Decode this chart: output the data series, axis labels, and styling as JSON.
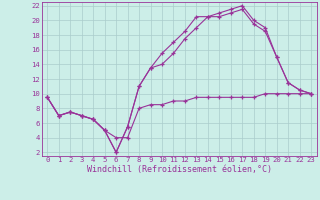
{
  "xlabel": "Windchill (Refroidissement éolien,°C)",
  "bg_color": "#cceee8",
  "grid_color": "#aacccc",
  "line_color": "#993399",
  "xlim": [
    -0.5,
    23.5
  ],
  "ylim": [
    1.5,
    22.5
  ],
  "xticks": [
    0,
    1,
    2,
    3,
    4,
    5,
    6,
    7,
    8,
    9,
    10,
    11,
    12,
    13,
    14,
    15,
    16,
    17,
    18,
    19,
    20,
    21,
    22,
    23
  ],
  "yticks": [
    2,
    4,
    6,
    8,
    10,
    12,
    14,
    16,
    18,
    20,
    22
  ],
  "line1_x": [
    0,
    1,
    2,
    3,
    4,
    5,
    6,
    7,
    8,
    9,
    10,
    11,
    12,
    13,
    14,
    15,
    16,
    17,
    18,
    19,
    20,
    21,
    22,
    23
  ],
  "line1_y": [
    9.5,
    7.0,
    7.5,
    7.0,
    6.5,
    5.0,
    4.0,
    4.0,
    8.0,
    8.5,
    8.5,
    9.0,
    9.0,
    9.5,
    9.5,
    9.5,
    9.5,
    9.5,
    9.5,
    10.0,
    10.0,
    10.0,
    10.0,
    10.0
  ],
  "line2_x": [
    0,
    1,
    2,
    3,
    4,
    5,
    6,
    7,
    8,
    9,
    10,
    11,
    12,
    13,
    14,
    15,
    16,
    17,
    18,
    19,
    20,
    21,
    22,
    23
  ],
  "line2_y": [
    9.5,
    7.0,
    7.5,
    7.0,
    6.5,
    5.0,
    2.0,
    5.5,
    11.0,
    13.5,
    14.0,
    15.5,
    17.5,
    19.0,
    20.5,
    21.0,
    21.5,
    22.0,
    20.0,
    19.0,
    15.0,
    11.5,
    10.5,
    10.0
  ],
  "line3_x": [
    0,
    1,
    2,
    3,
    4,
    5,
    6,
    7,
    8,
    9,
    10,
    11,
    12,
    13,
    14,
    15,
    16,
    17,
    18,
    19,
    20,
    21,
    22,
    23
  ],
  "line3_y": [
    9.5,
    7.0,
    7.5,
    7.0,
    6.5,
    5.0,
    2.0,
    5.5,
    11.0,
    13.5,
    15.5,
    17.0,
    18.5,
    20.5,
    20.5,
    20.5,
    21.0,
    21.5,
    19.5,
    18.5,
    15.0,
    11.5,
    10.5,
    10.0
  ],
  "xlabel_fontsize": 6.0,
  "tick_fontsize": 5.2,
  "marker_size": 3.5,
  "line_width": 0.8
}
